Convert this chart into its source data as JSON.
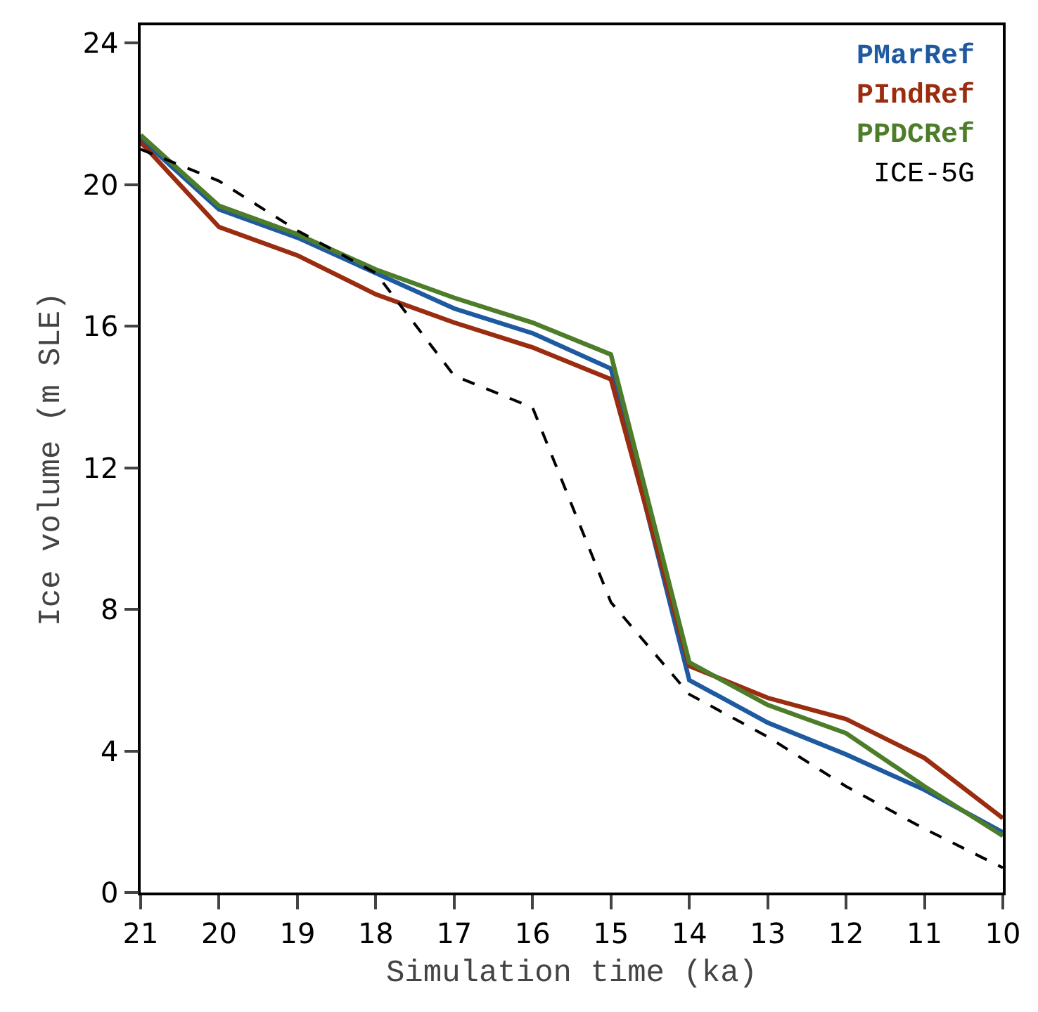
{
  "chart_data": {
    "type": "line",
    "xlabel": "Simulation time (ka)",
    "ylabel": "Ice volume (m SLE)",
    "x": [
      21,
      20,
      19,
      18,
      17,
      16,
      15,
      14,
      13,
      12,
      11,
      10
    ],
    "xlim": [
      21,
      10
    ],
    "xticks": [
      21,
      20,
      19,
      18,
      17,
      16,
      15,
      14,
      13,
      12,
      11,
      10
    ],
    "ylim": [
      0,
      24.5
    ],
    "yticks": [
      0,
      4,
      8,
      12,
      16,
      20,
      24
    ],
    "legend": "top right",
    "marker": "none",
    "series": [
      {
        "name": "PMarRef",
        "color": "#1f5aa0",
        "line_style": "solid",
        "values": [
          21.3,
          19.3,
          18.5,
          17.5,
          16.5,
          15.8,
          14.8,
          6.0,
          4.8,
          3.9,
          2.9,
          1.7
        ]
      },
      {
        "name": "PIndRef",
        "color": "#9a2c10",
        "line_style": "solid",
        "values": [
          21.2,
          18.8,
          18.0,
          16.9,
          16.1,
          15.4,
          14.5,
          6.4,
          5.5,
          4.9,
          3.8,
          2.1
        ]
      },
      {
        "name": "PPDCRef",
        "color": "#4e7d2a",
        "line_style": "solid",
        "values": [
          21.4,
          19.4,
          18.6,
          17.6,
          16.8,
          16.1,
          15.2,
          6.5,
          5.3,
          4.5,
          3.0,
          1.6
        ]
      },
      {
        "name": "ICE-5G",
        "color": "#000000",
        "line_style": "dashed",
        "values": [
          21.0,
          20.1,
          18.7,
          17.5,
          14.6,
          13.7,
          8.2,
          5.6,
          4.4,
          3.0,
          1.8,
          0.7
        ]
      }
    ]
  }
}
